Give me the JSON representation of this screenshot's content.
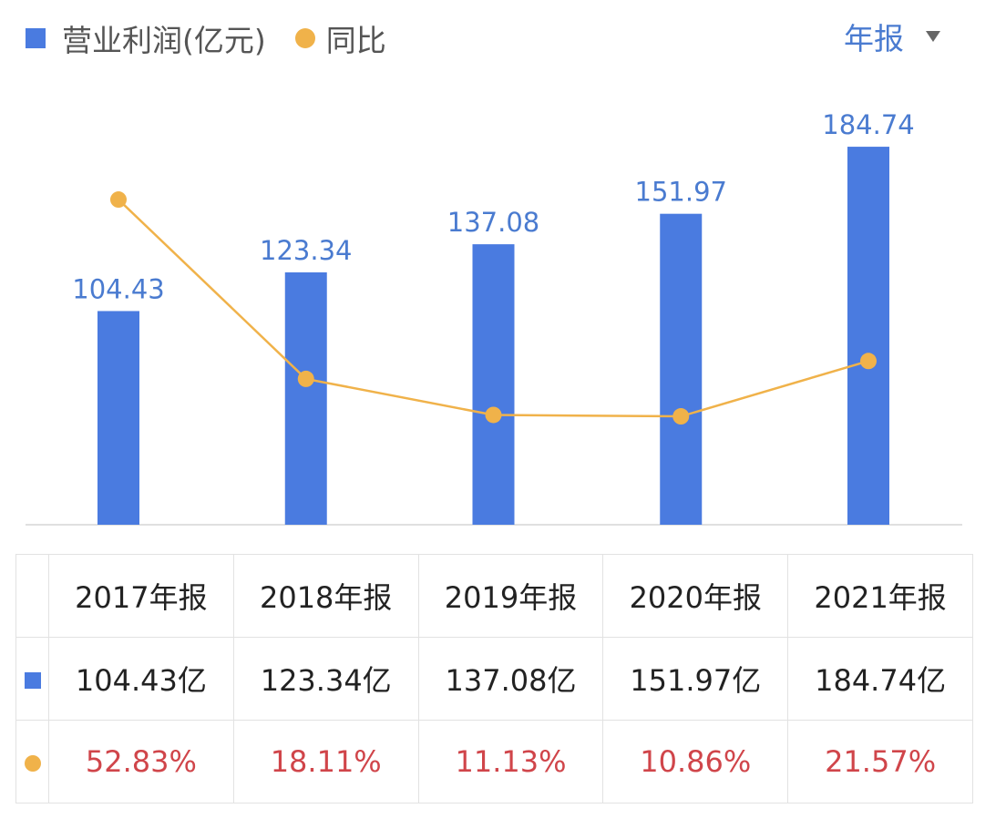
{
  "legend": {
    "bar_label": "营业利润(亿元)",
    "line_label": "同比"
  },
  "period_selector": {
    "label": "年报"
  },
  "colors": {
    "bar": "#4a7be0",
    "line": "#f0b24a",
    "label": "#4a7bd0",
    "yoy_text": "#d0454a"
  },
  "chart_data": {
    "type": "bar+line",
    "categories": [
      "2017年报",
      "2018年报",
      "2019年报",
      "2020年报",
      "2021年报"
    ],
    "series": [
      {
        "name": "营业利润(亿元)",
        "type": "bar",
        "values": [
          104.43,
          123.34,
          137.08,
          151.97,
          184.74
        ],
        "labels": [
          "104.43",
          "123.34",
          "137.08",
          "151.97",
          "184.74"
        ]
      },
      {
        "name": "同比",
        "type": "line",
        "values": [
          52.83,
          18.11,
          11.13,
          10.86,
          21.57
        ]
      }
    ],
    "grid": false
  },
  "table": {
    "headers": [
      "2017年报",
      "2018年报",
      "2019年报",
      "2020年报",
      "2021年报"
    ],
    "profit": [
      "104.43亿",
      "123.34亿",
      "137.08亿",
      "151.97亿",
      "184.74亿"
    ],
    "yoy": [
      "52.83%",
      "18.11%",
      "11.13%",
      "10.86%",
      "21.57%"
    ]
  }
}
